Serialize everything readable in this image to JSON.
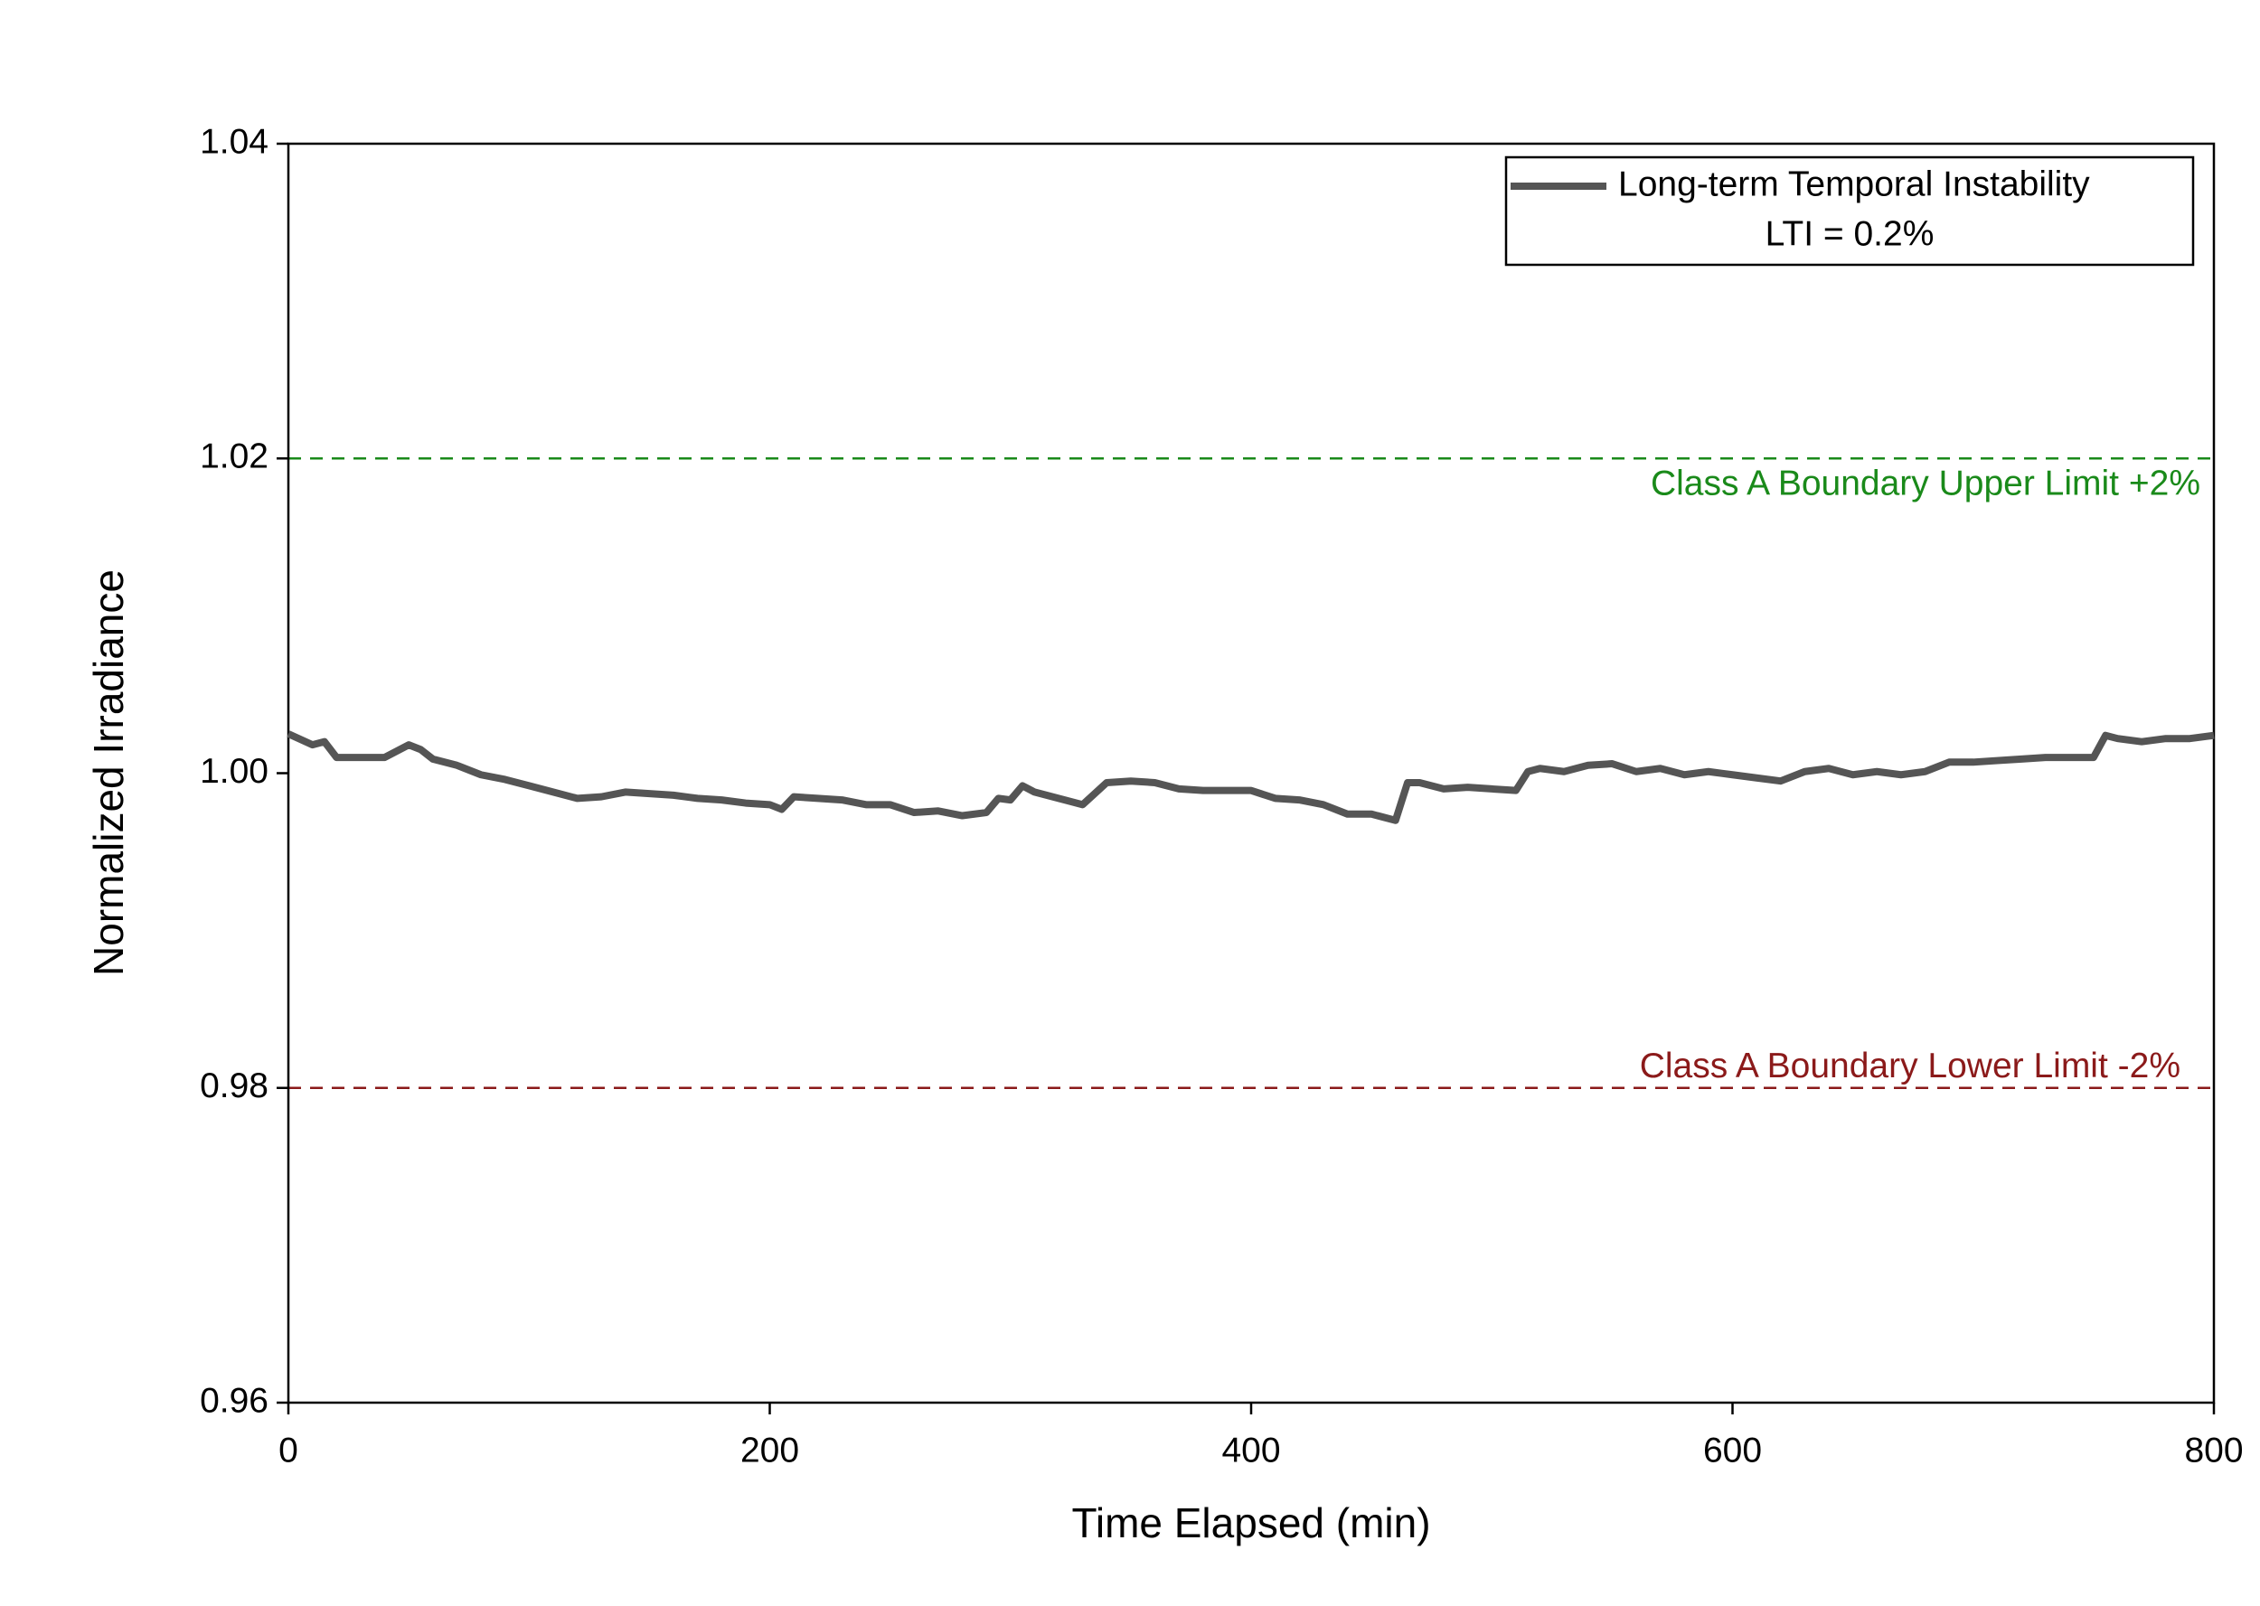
{
  "chart_data": {
    "type": "line",
    "xlabel": "Time Elapsed (min)",
    "ylabel": "Normalized Irradiance",
    "x": [
      0,
      10,
      15,
      20,
      30,
      40,
      50,
      55,
      60,
      70,
      80,
      90,
      100,
      110,
      120,
      130,
      140,
      150,
      160,
      170,
      180,
      190,
      200,
      205,
      210,
      220,
      230,
      240,
      250,
      260,
      270,
      280,
      290,
      295,
      300,
      305,
      310,
      320,
      330,
      340,
      350,
      360,
      370,
      380,
      390,
      400,
      410,
      420,
      430,
      440,
      450,
      460,
      465,
      470,
      480,
      490,
      500,
      510,
      515,
      520,
      530,
      540,
      550,
      560,
      570,
      580,
      590,
      600,
      610,
      620,
      630,
      640,
      650,
      660,
      670,
      680,
      690,
      700,
      710,
      720,
      730,
      740,
      750,
      755,
      760,
      770,
      780,
      790,
      800
    ],
    "series": [
      {
        "name": "Long-term Temporal Instability",
        "color": "#555555",
        "values": [
          1.0025,
          1.0018,
          1.002,
          1.001,
          1.001,
          1.001,
          1.0018,
          1.0015,
          1.0009,
          1.0005,
          0.9999,
          0.9996,
          0.9992,
          0.9988,
          0.9984,
          0.9985,
          0.9988,
          0.9987,
          0.9986,
          0.9984,
          0.9983,
          0.9981,
          0.998,
          0.9977,
          0.9985,
          0.9984,
          0.9983,
          0.998,
          0.998,
          0.9975,
          0.9976,
          0.9973,
          0.9975,
          0.9984,
          0.9983,
          0.9992,
          0.9988,
          0.9984,
          0.998,
          0.9994,
          0.9995,
          0.9994,
          0.999,
          0.9989,
          0.9989,
          0.9989,
          0.9984,
          0.9983,
          0.998,
          0.9974,
          0.9974,
          0.997,
          0.9994,
          0.9994,
          0.999,
          0.9991,
          0.999,
          0.9989,
          1.0001,
          1.0003,
          1.0001,
          1.0005,
          1.0006,
          1.0001,
          1.0003,
          0.9999,
          1.0001,
          0.9999,
          0.9997,
          0.9995,
          1.0001,
          1.0003,
          0.9999,
          1.0001,
          0.9999,
          1.0001,
          1.0007,
          1.0007,
          1.0008,
          1.0009,
          1.001,
          1.001,
          1.001,
          1.0024,
          1.0022,
          1.002,
          1.0022,
          1.0022,
          1.0024
        ]
      }
    ],
    "legend_note": "LTI = 0.2%",
    "reference_lines": [
      {
        "value": 1.02,
        "label": "Class A Boundary Upper Limit +2%",
        "color": "#1a8a1a"
      },
      {
        "value": 0.98,
        "label": "Class A Boundary Lower Limit -2%",
        "color": "#8b1a1a"
      }
    ],
    "xlim": [
      0,
      800
    ],
    "xticks": [
      0,
      200,
      400,
      600,
      800
    ],
    "ylim": [
      0.96,
      1.04
    ],
    "yticks": [
      0.96,
      0.98,
      {
        "value": 1,
        "label": "1.00"
      },
      1.02,
      1.04
    ],
    "legend_position": "upper right"
  }
}
